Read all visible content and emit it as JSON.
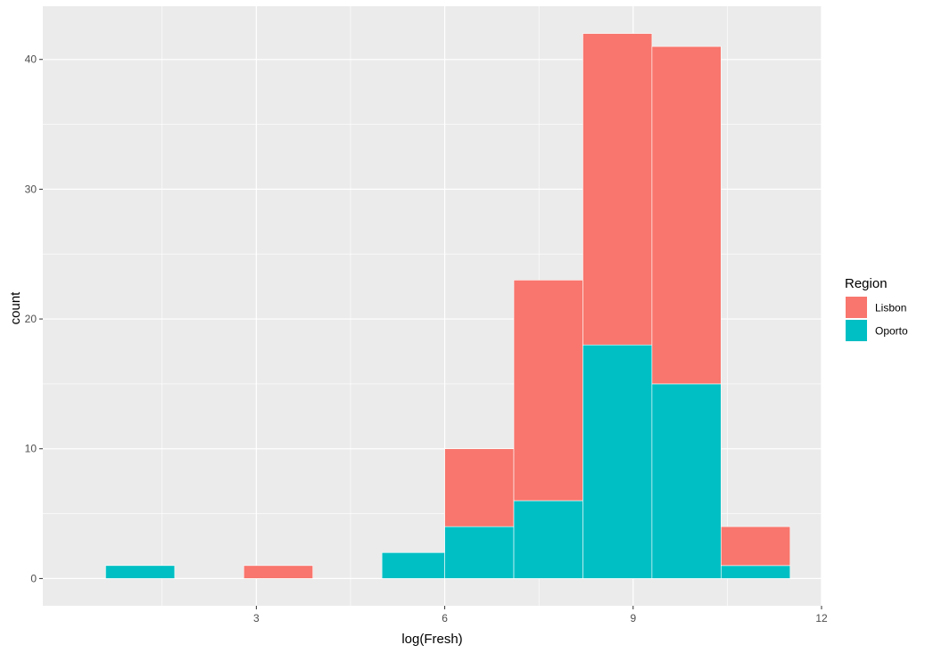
{
  "chart_data": {
    "type": "bar",
    "stacked": true,
    "xlabel": "log(Fresh)",
    "ylabel": "count",
    "xlim": [
      -0.4,
      12.0
    ],
    "ylim": [
      -2.1,
      44.1
    ],
    "x_ticks": [
      3,
      6,
      9,
      12
    ],
    "y_ticks": [
      0,
      10,
      20,
      30,
      40
    ],
    "grid": true,
    "legend": {
      "title": "Region",
      "placement": "right",
      "entries": [
        "Lisbon",
        "Oporto"
      ]
    },
    "bins": [
      {
        "xmin": 0.6,
        "xmax": 1.7
      },
      {
        "xmin": 1.7,
        "xmax": 2.8
      },
      {
        "xmin": 2.8,
        "xmax": 3.9
      },
      {
        "xmin": 3.9,
        "xmax": 5.0
      },
      {
        "xmin": 5.0,
        "xmax": 6.0
      },
      {
        "xmin": 6.0,
        "xmax": 7.1
      },
      {
        "xmin": 7.1,
        "xmax": 8.2
      },
      {
        "xmin": 8.2,
        "xmax": 9.3
      },
      {
        "xmin": 9.3,
        "xmax": 10.4
      },
      {
        "xmin": 10.4,
        "xmax": 11.5
      }
    ],
    "series": [
      {
        "name": "Lisbon",
        "color": "#F8766D",
        "values": [
          0,
          0,
          1,
          0,
          0,
          6,
          17,
          24,
          26,
          3
        ]
      },
      {
        "name": "Oporto",
        "color": "#00BFC4",
        "values": [
          1,
          0,
          0,
          0,
          2,
          4,
          6,
          18,
          15,
          1
        ]
      }
    ]
  }
}
